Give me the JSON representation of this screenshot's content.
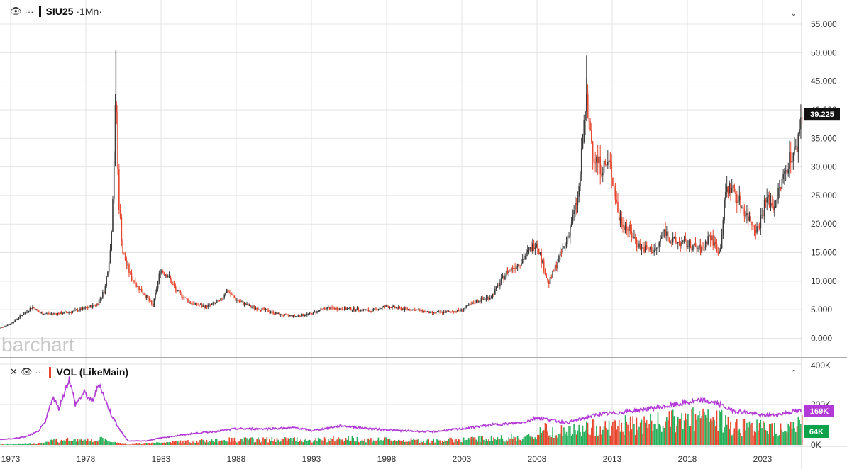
{
  "header": {
    "symbol": "SIU25",
    "interval": "·1Mn·"
  },
  "volume_header": {
    "label": "VOL (LikeMain)"
  },
  "watermark": "barchart",
  "icons": {
    "eye": "eye-icon",
    "more": "more-icon",
    "close": "close-icon",
    "chevron_down": "chevron-down-icon",
    "chevron_up": "chevron-up-icon"
  },
  "colors": {
    "up": "#3a3a3a",
    "down": "#e8452d",
    "vol_up": "#25b05a",
    "vol_down": "#e8452d",
    "vol_avg": "#b23ad6",
    "last_tag": "#111111",
    "avg_tag": "#b23ad6",
    "vol_tag": "#0aa34a"
  },
  "chart_data": {
    "type": "candlestick",
    "instrument": "SIU25",
    "interval": "1Mn",
    "x_tick_labels": [
      "1973",
      "1978",
      "1983",
      "1988",
      "1993",
      "1998",
      "2003",
      "2008",
      "2013",
      "2018",
      "2023"
    ],
    "price_axis": {
      "ylim": [
        -1.5,
        58
      ],
      "ticks": [
        0,
        5,
        10,
        15,
        20,
        25,
        30,
        35,
        40,
        45,
        50,
        55
      ],
      "tick_labels": [
        "0.000",
        "5.000",
        "10.000",
        "15.000",
        "20.000",
        "25.000",
        "30.000",
        "35.000",
        "40.000",
        "45.000",
        "50.000",
        "55.000"
      ]
    },
    "last_price": 39.225,
    "last_price_label": "39.225",
    "price_path": [
      [
        1972.0,
        1.5
      ],
      [
        1973.0,
        2.5
      ],
      [
        1974.0,
        4.5
      ],
      [
        1974.5,
        5.5
      ],
      [
        1975.0,
        4.4
      ],
      [
        1976.0,
        4.3
      ],
      [
        1977.0,
        4.6
      ],
      [
        1978.0,
        5.2
      ],
      [
        1978.8,
        6.0
      ],
      [
        1979.3,
        8.5
      ],
      [
        1979.7,
        16.0
      ],
      [
        1979.9,
        30.0
      ],
      [
        1980.05,
        44.0
      ],
      [
        1980.2,
        25.0
      ],
      [
        1980.5,
        15.0
      ],
      [
        1981.0,
        11.0
      ],
      [
        1981.5,
        9.0
      ],
      [
        1982.0,
        7.5
      ],
      [
        1982.5,
        5.6
      ],
      [
        1983.0,
        12.0
      ],
      [
        1983.5,
        11.0
      ],
      [
        1984.0,
        8.5
      ],
      [
        1985.0,
        6.2
      ],
      [
        1986.0,
        5.5
      ],
      [
        1987.0,
        6.5
      ],
      [
        1987.4,
        8.5
      ],
      [
        1988.0,
        6.8
      ],
      [
        1989.0,
        5.5
      ],
      [
        1990.0,
        4.9
      ],
      [
        1991.0,
        4.1
      ],
      [
        1992.0,
        3.9
      ],
      [
        1993.0,
        4.3
      ],
      [
        1994.0,
        5.3
      ],
      [
        1995.0,
        5.2
      ],
      [
        1996.0,
        5.1
      ],
      [
        1997.0,
        4.8
      ],
      [
        1998.0,
        5.6
      ],
      [
        1999.0,
        5.2
      ],
      [
        2000.0,
        5.0
      ],
      [
        2001.0,
        4.4
      ],
      [
        2002.0,
        4.6
      ],
      [
        2003.0,
        4.9
      ],
      [
        2004.0,
        6.5
      ],
      [
        2005.0,
        7.3
      ],
      [
        2006.0,
        11.5
      ],
      [
        2007.0,
        13.5
      ],
      [
        2008.0,
        17.0
      ],
      [
        2008.8,
        9.5
      ],
      [
        2009.5,
        14.0
      ],
      [
        2010.0,
        17.0
      ],
      [
        2010.8,
        25.0
      ],
      [
        2011.3,
        42.0
      ],
      [
        2011.8,
        32.0
      ],
      [
        2012.3,
        30.0
      ],
      [
        2012.9,
        30.5
      ],
      [
        2013.5,
        21.0
      ],
      [
        2014.0,
        19.5
      ],
      [
        2014.9,
        16.0
      ],
      [
        2015.5,
        15.5
      ],
      [
        2016.0,
        15.5
      ],
      [
        2016.5,
        19.0
      ],
      [
        2017.0,
        17.0
      ],
      [
        2018.0,
        16.5
      ],
      [
        2019.0,
        15.5
      ],
      [
        2019.5,
        18.0
      ],
      [
        2020.2,
        15.0
      ],
      [
        2020.6,
        26.0
      ],
      [
        2021.0,
        26.5
      ],
      [
        2022.0,
        21.5
      ],
      [
        2022.7,
        19.0
      ],
      [
        2023.3,
        24.5
      ],
      [
        2023.8,
        23.0
      ],
      [
        2024.3,
        27.0
      ],
      [
        2024.8,
        31.5
      ],
      [
        2025.3,
        33.0
      ],
      [
        2025.6,
        39.225
      ]
    ],
    "volume_axis": {
      "ylim": [
        0,
        400000
      ],
      "tick_labels": [
        "400K",
        "200K",
        "0K"
      ]
    },
    "volume_avg_label": "169K",
    "volume_last_label": "64K",
    "volume_avg_path": [
      [
        1972.0,
        25000
      ],
      [
        1973.0,
        30000
      ],
      [
        1974.0,
        40000
      ],
      [
        1974.8,
        65000
      ],
      [
        1975.3,
        110000
      ],
      [
        1975.8,
        240000
      ],
      [
        1976.2,
        180000
      ],
      [
        1976.9,
        330000
      ],
      [
        1977.3,
        200000
      ],
      [
        1977.9,
        260000
      ],
      [
        1978.4,
        210000
      ],
      [
        1978.9,
        305000
      ],
      [
        1979.3,
        220000
      ],
      [
        1979.7,
        150000
      ],
      [
        1980.3,
        70000
      ],
      [
        1980.8,
        20000
      ],
      [
        1982.0,
        20000
      ],
      [
        1983.0,
        35000
      ],
      [
        1985.0,
        55000
      ],
      [
        1987.0,
        70000
      ],
      [
        1988.0,
        80000
      ],
      [
        1990.0,
        80000
      ],
      [
        1992.0,
        85000
      ],
      [
        1993.0,
        70000
      ],
      [
        1995.0,
        95000
      ],
      [
        1997.0,
        80000
      ],
      [
        1999.0,
        70000
      ],
      [
        2001.0,
        65000
      ],
      [
        2003.0,
        80000
      ],
      [
        2005.0,
        100000
      ],
      [
        2007.0,
        110000
      ],
      [
        2008.0,
        135000
      ],
      [
        2008.8,
        125000
      ],
      [
        2010.0,
        110000
      ],
      [
        2012.0,
        150000
      ],
      [
        2013.5,
        160000
      ],
      [
        2015.0,
        175000
      ],
      [
        2016.5,
        190000
      ],
      [
        2018.0,
        210000
      ],
      [
        2019.0,
        220000
      ],
      [
        2020.0,
        205000
      ],
      [
        2021.0,
        170000
      ],
      [
        2022.0,
        160000
      ],
      [
        2023.0,
        145000
      ],
      [
        2024.0,
        150000
      ],
      [
        2025.0,
        165000
      ],
      [
        2025.6,
        169000
      ]
    ]
  }
}
